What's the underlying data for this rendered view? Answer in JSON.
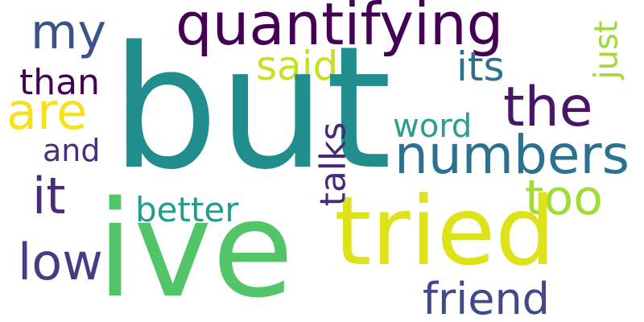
{
  "words": {
    "but": {
      "text": "but",
      "color": "#218e8d"
    },
    "ive": {
      "text": "ive",
      "color": "#52c569"
    },
    "tried": {
      "text": "tried",
      "color": "#dde318"
    },
    "quantifying": {
      "text": "quantifying",
      "color": "#440154"
    },
    "numbers": {
      "text": "numbers",
      "color": "#2c728e"
    },
    "the": {
      "text": "the",
      "color": "#481567"
    },
    "my": {
      "text": "my",
      "color": "#3b528b"
    },
    "are": {
      "text": "are",
      "color": "#f7e11e"
    },
    "it": {
      "text": "it",
      "color": "#472d7b"
    },
    "low": {
      "text": "low",
      "color": "#433d84"
    },
    "too": {
      "text": "too",
      "color": "#a2da37"
    },
    "friend": {
      "text": "friend",
      "color": "#3e4a89"
    },
    "said": {
      "text": "said",
      "color": "#c7e020"
    },
    "its": {
      "text": "its",
      "color": "#2d718e"
    },
    "than": {
      "text": "than",
      "color": "#440154"
    },
    "and": {
      "text": "and",
      "color": "#46307e"
    },
    "better": {
      "text": "better",
      "color": "#1f9e89"
    },
    "word": {
      "text": "word",
      "color": "#2a9d8b"
    },
    "talks": {
      "text": "talks",
      "color": "#482878"
    },
    "just": {
      "text": "just",
      "color": "#a0da39"
    }
  }
}
